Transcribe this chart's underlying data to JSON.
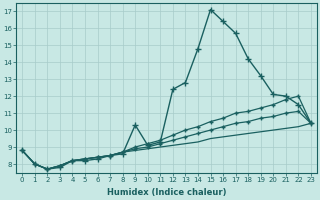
{
  "xlabel": "Humidex (Indice chaleur)",
  "ylabel": "",
  "bg_color": "#c8e8e4",
  "grid_color": "#a8ccca",
  "line_color": "#1a6060",
  "xlim": [
    -0.5,
    23.5
  ],
  "ylim": [
    7.5,
    17.5
  ],
  "yticks": [
    8,
    9,
    10,
    11,
    12,
    13,
    14,
    15,
    16,
    17
  ],
  "xticks": [
    0,
    1,
    2,
    3,
    4,
    5,
    6,
    7,
    8,
    9,
    10,
    11,
    12,
    13,
    14,
    15,
    16,
    17,
    18,
    19,
    20,
    21,
    22,
    23
  ],
  "series": [
    {
      "x": [
        0,
        1,
        2,
        3,
        4,
        5,
        6,
        7,
        8,
        9,
        10,
        11,
        12,
        13,
        14,
        15,
        16,
        17,
        18,
        19,
        20,
        21,
        22,
        23
      ],
      "y": [
        8.8,
        8.0,
        7.7,
        7.8,
        8.2,
        8.2,
        8.3,
        8.5,
        8.6,
        10.3,
        9.1,
        9.3,
        12.4,
        12.8,
        14.8,
        17.1,
        16.4,
        15.7,
        14.2,
        13.2,
        12.1,
        12.0,
        11.5,
        10.4
      ],
      "marker": "+",
      "linestyle": "-",
      "linewidth": 1.0,
      "markersize": 4,
      "has_marker": true
    },
    {
      "x": [
        0,
        1,
        2,
        3,
        4,
        5,
        6,
        7,
        8,
        9,
        10,
        11,
        12,
        13,
        14,
        15,
        16,
        17,
        18,
        19,
        20,
        21,
        22,
        23
      ],
      "y": [
        8.8,
        8.0,
        7.7,
        7.9,
        8.2,
        8.3,
        8.4,
        8.5,
        8.7,
        9.0,
        9.2,
        9.4,
        9.7,
        10.0,
        10.2,
        10.5,
        10.7,
        11.0,
        11.1,
        11.3,
        11.5,
        11.8,
        12.0,
        10.4
      ],
      "marker": "+",
      "linestyle": "-",
      "linewidth": 0.9,
      "markersize": 3,
      "has_marker": true
    },
    {
      "x": [
        0,
        1,
        2,
        3,
        4,
        5,
        6,
        7,
        8,
        9,
        10,
        11,
        12,
        13,
        14,
        15,
        16,
        17,
        18,
        19,
        20,
        21,
        22,
        23
      ],
      "y": [
        8.8,
        8.0,
        7.7,
        7.9,
        8.2,
        8.3,
        8.4,
        8.5,
        8.7,
        8.9,
        9.0,
        9.2,
        9.4,
        9.6,
        9.8,
        10.0,
        10.2,
        10.4,
        10.5,
        10.7,
        10.8,
        11.0,
        11.1,
        10.4
      ],
      "marker": "+",
      "linestyle": "-",
      "linewidth": 0.9,
      "markersize": 3,
      "has_marker": true
    },
    {
      "x": [
        0,
        1,
        2,
        3,
        4,
        5,
        6,
        7,
        8,
        9,
        10,
        11,
        12,
        13,
        14,
        15,
        16,
        17,
        18,
        19,
        20,
        21,
        22,
        23
      ],
      "y": [
        8.8,
        8.0,
        7.7,
        7.9,
        8.2,
        8.3,
        8.4,
        8.5,
        8.7,
        8.8,
        8.9,
        9.0,
        9.1,
        9.2,
        9.3,
        9.5,
        9.6,
        9.7,
        9.8,
        9.9,
        10.0,
        10.1,
        10.2,
        10.4
      ],
      "marker": null,
      "linestyle": "-",
      "linewidth": 0.9,
      "markersize": 0,
      "has_marker": false
    }
  ]
}
